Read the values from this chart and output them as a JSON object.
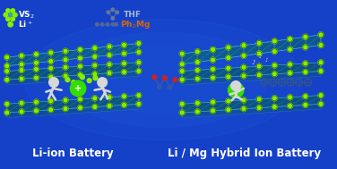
{
  "bg_color": "#1540c8",
  "bg_glow_color": "#2060dd",
  "title_left": "Li-ion Battery",
  "title_right": "Li / Mg Hybrid Ion Battery",
  "title_fontsize": 8.5,
  "node_color": "#88ee00",
  "node_color_dark": "#55aa00",
  "sheet_face_color": "#0a6060",
  "sheet_face_color2": "#0d7070",
  "sheet_edge_color": "#44cccc",
  "sheet_edge_color2": "#55aaaa",
  "text_color_white": "#ffffff",
  "text_color_gray": "#aabbcc",
  "text_color_orange": "#dd6600",
  "stickman_color": "#dddddd",
  "green_ball_color": "#33dd00"
}
